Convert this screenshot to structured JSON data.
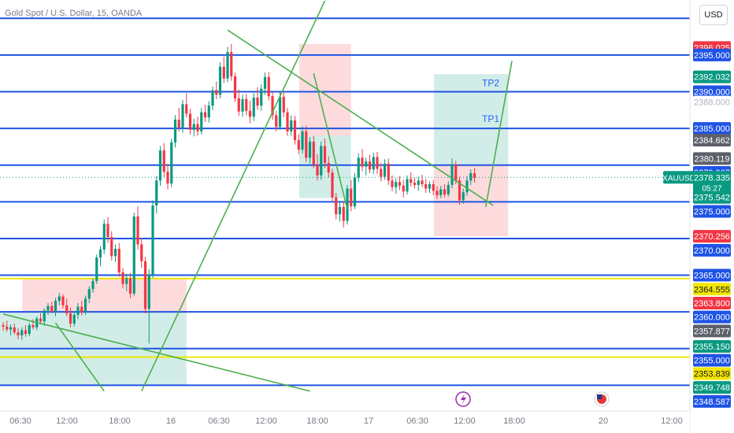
{
  "header": {
    "title": "Gold Spot / U.S. Dollar, 15, OANDA",
    "currency_button": "USD"
  },
  "symbol_tag": {
    "name": "XAUUSD",
    "price": "2378.335",
    "countdown": "05:27"
  },
  "colors": {
    "up": "#089981",
    "down": "#f23645",
    "hline": "#1e53e5",
    "yellow_line": "#f2e600",
    "trend": "#4caf50",
    "zone_green": "rgba(8,153,129,0.18)",
    "zone_red": "rgba(242,54,69,0.18)",
    "tp_text": "#2962ff"
  },
  "chart_data": {
    "type": "candlestick",
    "instrument": "XAUUSD",
    "timeframe": "15",
    "ylim": [
      2346.5,
      2402.5
    ],
    "x_ticks": [
      "06:30",
      "12:00",
      "18:00",
      "16",
      "06:30",
      "12:00",
      "18:00",
      "17",
      "06:30",
      "12:00",
      "18:00",
      "20",
      "12:00"
    ],
    "horizontal_levels": [
      2400,
      2395,
      2390,
      2385,
      2380,
      2375,
      2370,
      2365,
      2360,
      2355,
      2350
    ],
    "yellow_levels": [
      2364.555,
      2353.839
    ],
    "labels": [
      {
        "text": "TP2",
        "price": 2391.2
      },
      {
        "text": "TP1",
        "price": 2386.3
      }
    ],
    "price_tags": [
      {
        "text": "2396.025",
        "price": 2396.025,
        "kind": "red"
      },
      {
        "text": "2395.000",
        "price": 2395.0,
        "kind": "blue"
      },
      {
        "text": "2392.032",
        "price": 2392.032,
        "kind": "green"
      },
      {
        "text": "2390.000",
        "price": 2390.0,
        "kind": "blue"
      },
      {
        "text": "2388.000",
        "price": 2388.6,
        "kind": "plain"
      },
      {
        "text": "2385.000",
        "price": 2385.0,
        "kind": "blue"
      },
      {
        "text": "2384.662",
        "price": 2383.4,
        "kind": "gray"
      },
      {
        "text": "2380.119",
        "price": 2380.9,
        "kind": "gray"
      },
      {
        "text": "2379.907",
        "price": 2379.0,
        "kind": "blue"
      },
      {
        "text": "2375.542",
        "price": 2375.6,
        "kind": "green"
      },
      {
        "text": "2375.000",
        "price": 2373.7,
        "kind": "blue"
      },
      {
        "text": "2370.256",
        "price": 2370.3,
        "kind": "red"
      },
      {
        "text": "2370.000",
        "price": 2368.4,
        "kind": "blue"
      },
      {
        "text": "2365.000",
        "price": 2365.0,
        "kind": "blue"
      },
      {
        "text": "2364.555",
        "price": 2363.1,
        "kind": "yellow"
      },
      {
        "text": "2363.800",
        "price": 2361.2,
        "kind": "red"
      },
      {
        "text": "2360.000",
        "price": 2359.3,
        "kind": "blue"
      },
      {
        "text": "2357.877",
        "price": 2357.4,
        "kind": "gray"
      },
      {
        "text": "2355.150",
        "price": 2355.3,
        "kind": "green"
      },
      {
        "text": "2355.000",
        "price": 2353.4,
        "kind": "blue"
      },
      {
        "text": "2353.839",
        "price": 2351.6,
        "kind": "yellow"
      },
      {
        "text": "2349.748",
        "price": 2349.7,
        "kind": "green"
      },
      {
        "text": "2348.587",
        "price": 2347.8,
        "kind": "blue"
      }
    ],
    "zones": [
      {
        "kind": "green",
        "bar_from": 0,
        "bar_to": 49,
        "price_top": 2359.9,
        "price_bottom": 2350.0
      },
      {
        "kind": "red",
        "bar_from": 6,
        "bar_to": 49,
        "price_top": 2364.6,
        "price_bottom": 2359.9
      },
      {
        "kind": "red",
        "bar_from": 80,
        "bar_to": 93,
        "price_top": 2396.5,
        "price_bottom": 2384.0
      },
      {
        "kind": "green",
        "bar_from": 80,
        "bar_to": 93,
        "price_top": 2384.0,
        "price_bottom": 2375.5
      },
      {
        "kind": "green",
        "bar_from": 116,
        "bar_to": 135,
        "price_top": 2392.4,
        "price_bottom": 2380.1
      },
      {
        "kind": "red",
        "bar_from": 116,
        "bar_to": 135,
        "price_top": 2380.1,
        "price_bottom": 2370.3
      }
    ],
    "trendlines": [
      {
        "from": [
          0,
          2359.7
        ],
        "to": [
          82,
          2349.2
        ]
      },
      {
        "from": [
          14,
          2358.5
        ],
        "to": [
          27,
          2349.2
        ]
      },
      {
        "from": [
          37,
          2349.2
        ],
        "to": [
          86,
          2402.4
        ]
      },
      {
        "from": [
          60,
          2398.4
        ],
        "to": [
          131,
          2374.5
        ]
      },
      {
        "from": [
          83,
          2392.5
        ],
        "to": [
          92,
          2374.0
        ]
      },
      {
        "from": [
          129,
          2374.3
        ],
        "to": [
          136,
          2394.2
        ]
      }
    ],
    "candles": [
      [
        2358.2,
        2358.6,
        2357.4,
        2358.0
      ],
      [
        2358.0,
        2358.8,
        2357.3,
        2357.6
      ],
      [
        2357.6,
        2358.3,
        2356.8,
        2357.9
      ],
      [
        2357.9,
        2358.4,
        2356.9,
        2357.2
      ],
      [
        2357.2,
        2357.8,
        2356.3,
        2356.8
      ],
      [
        2356.8,
        2357.9,
        2356.2,
        2357.5
      ],
      [
        2357.5,
        2358.2,
        2356.6,
        2357.0
      ],
      [
        2357.0,
        2358.5,
        2356.7,
        2358.2
      ],
      [
        2358.2,
        2359.0,
        2357.6,
        2357.9
      ],
      [
        2357.9,
        2359.4,
        2357.5,
        2359.1
      ],
      [
        2359.1,
        2359.8,
        2358.3,
        2358.7
      ],
      [
        2358.7,
        2360.5,
        2358.1,
        2360.2
      ],
      [
        2360.2,
        2361.2,
        2359.6,
        2360.8
      ],
      [
        2360.8,
        2361.4,
        2359.8,
        2360.0
      ],
      [
        2360.0,
        2361.9,
        2359.4,
        2361.5
      ],
      [
        2361.5,
        2362.6,
        2360.9,
        2362.1
      ],
      [
        2362.1,
        2362.4,
        2360.5,
        2360.9
      ],
      [
        2360.9,
        2361.8,
        2359.4,
        2359.8
      ],
      [
        2359.8,
        2360.6,
        2357.9,
        2358.4
      ],
      [
        2358.4,
        2360.1,
        2358.0,
        2359.6
      ],
      [
        2359.6,
        2361.2,
        2359.0,
        2360.7
      ],
      [
        2360.7,
        2361.5,
        2359.5,
        2359.9
      ],
      [
        2359.9,
        2362.2,
        2359.6,
        2361.8
      ],
      [
        2361.8,
        2363.5,
        2361.2,
        2363.1
      ],
      [
        2363.1,
        2364.6,
        2362.6,
        2364.2
      ],
      [
        2364.2,
        2367.8,
        2363.8,
        2367.4
      ],
      [
        2367.4,
        2369.0,
        2366.2,
        2368.5
      ],
      [
        2368.5,
        2372.6,
        2367.9,
        2372.0
      ],
      [
        2372.0,
        2372.9,
        2369.4,
        2370.2
      ],
      [
        2370.2,
        2371.0,
        2367.0,
        2367.6
      ],
      [
        2367.6,
        2369.2,
        2366.8,
        2368.6
      ],
      [
        2368.6,
        2369.4,
        2364.8,
        2365.4
      ],
      [
        2365.4,
        2366.0,
        2363.2,
        2363.8
      ],
      [
        2363.8,
        2365.2,
        2362.8,
        2364.6
      ],
      [
        2364.6,
        2365.3,
        2361.9,
        2362.5
      ],
      [
        2362.5,
        2373.5,
        2362.2,
        2373.0
      ],
      [
        2373.0,
        2374.4,
        2368.5,
        2369.2
      ],
      [
        2369.2,
        2370.1,
        2366.0,
        2366.9
      ],
      [
        2366.9,
        2367.5,
        2359.8,
        2360.4
      ],
      [
        2360.4,
        2365.8,
        2355.7,
        2365.1
      ],
      [
        2365.1,
        2375.2,
        2364.6,
        2374.5
      ],
      [
        2374.5,
        2378.5,
        2373.4,
        2377.9
      ],
      [
        2377.9,
        2382.6,
        2377.2,
        2382.0
      ],
      [
        2382.0,
        2383.0,
        2378.4,
        2379.1
      ],
      [
        2379.1,
        2380.2,
        2376.7,
        2377.5
      ],
      [
        2377.5,
        2383.6,
        2377.0,
        2383.1
      ],
      [
        2383.1,
        2386.8,
        2382.4,
        2386.2
      ],
      [
        2386.2,
        2387.8,
        2384.6,
        2385.1
      ],
      [
        2385.1,
        2388.9,
        2384.4,
        2388.3
      ],
      [
        2388.3,
        2389.8,
        2386.5,
        2387.0
      ],
      [
        2387.0,
        2387.7,
        2384.2,
        2384.8
      ],
      [
        2384.8,
        2386.3,
        2383.9,
        2385.6
      ],
      [
        2385.6,
        2386.6,
        2384.0,
        2384.6
      ],
      [
        2384.6,
        2387.8,
        2384.2,
        2387.2
      ],
      [
        2387.2,
        2388.2,
        2385.9,
        2386.5
      ],
      [
        2386.5,
        2388.7,
        2385.8,
        2388.1
      ],
      [
        2388.1,
        2390.7,
        2387.5,
        2390.2
      ],
      [
        2390.2,
        2391.4,
        2389.0,
        2389.6
      ],
      [
        2389.6,
        2394.0,
        2389.1,
        2393.4
      ],
      [
        2393.4,
        2394.8,
        2391.2,
        2391.8
      ],
      [
        2391.8,
        2396.1,
        2391.3,
        2395.4
      ],
      [
        2395.4,
        2396.5,
        2391.5,
        2392.1
      ],
      [
        2392.1,
        2392.6,
        2388.6,
        2389.1
      ],
      [
        2389.1,
        2390.3,
        2386.7,
        2387.3
      ],
      [
        2387.3,
        2389.6,
        2386.6,
        2389.0
      ],
      [
        2389.0,
        2389.7,
        2386.8,
        2387.4
      ],
      [
        2387.4,
        2388.8,
        2385.7,
        2386.6
      ],
      [
        2386.6,
        2389.8,
        2386.0,
        2389.2
      ],
      [
        2389.2,
        2390.6,
        2387.5,
        2388.1
      ],
      [
        2388.1,
        2391.0,
        2387.4,
        2390.4
      ],
      [
        2390.4,
        2392.6,
        2389.6,
        2392.0
      ],
      [
        2392.0,
        2392.7,
        2388.8,
        2389.4
      ],
      [
        2389.4,
        2390.0,
        2386.2,
        2386.8
      ],
      [
        2386.8,
        2387.4,
        2384.6,
        2385.2
      ],
      [
        2385.2,
        2389.9,
        2384.8,
        2389.3
      ],
      [
        2389.3,
        2390.0,
        2386.5,
        2387.2
      ],
      [
        2387.2,
        2387.8,
        2384.0,
        2384.6
      ],
      [
        2384.6,
        2386.8,
        2384.0,
        2386.1
      ],
      [
        2386.1,
        2386.7,
        2382.8,
        2383.4
      ],
      [
        2383.4,
        2384.2,
        2381.5,
        2382.1
      ],
      [
        2382.1,
        2385.3,
        2381.6,
        2384.6
      ],
      [
        2384.6,
        2385.4,
        2380.4,
        2381.0
      ],
      [
        2381.0,
        2383.8,
        2380.2,
        2383.2
      ],
      [
        2383.2,
        2384.0,
        2379.6,
        2380.1
      ],
      [
        2380.1,
        2381.5,
        2377.9,
        2378.6
      ],
      [
        2378.6,
        2383.2,
        2378.0,
        2382.6
      ],
      [
        2382.6,
        2383.6,
        2379.6,
        2380.3
      ],
      [
        2380.3,
        2381.2,
        2378.3,
        2379.0
      ],
      [
        2379.0,
        2379.5,
        2375.0,
        2375.6
      ],
      [
        2375.6,
        2376.2,
        2372.6,
        2373.3
      ],
      [
        2373.3,
        2375.0,
        2372.3,
        2374.3
      ],
      [
        2374.3,
        2375.0,
        2371.5,
        2372.4
      ],
      [
        2372.4,
        2377.3,
        2371.9,
        2376.8
      ],
      [
        2376.8,
        2378.0,
        2373.7,
        2374.4
      ],
      [
        2374.4,
        2378.9,
        2374.0,
        2378.3
      ],
      [
        2378.3,
        2381.6,
        2377.7,
        2381.0
      ],
      [
        2381.0,
        2382.2,
        2379.2,
        2379.8
      ],
      [
        2379.8,
        2381.0,
        2378.6,
        2380.5
      ],
      [
        2380.5,
        2381.4,
        2378.9,
        2379.4
      ],
      [
        2379.4,
        2381.7,
        2378.8,
        2381.1
      ],
      [
        2381.1,
        2381.8,
        2378.8,
        2379.5
      ],
      [
        2379.5,
        2380.3,
        2377.8,
        2378.4
      ],
      [
        2378.4,
        2380.8,
        2378.0,
        2380.2
      ],
      [
        2380.2,
        2380.9,
        2377.3,
        2377.9
      ],
      [
        2377.9,
        2378.6,
        2376.4,
        2377.0
      ],
      [
        2377.0,
        2378.2,
        2376.1,
        2377.7
      ],
      [
        2377.7,
        2378.5,
        2376.6,
        2377.2
      ],
      [
        2377.2,
        2378.0,
        2375.6,
        2376.4
      ],
      [
        2376.4,
        2378.6,
        2376.0,
        2378.1
      ],
      [
        2378.1,
        2379.0,
        2377.1,
        2377.6
      ],
      [
        2377.6,
        2378.3,
        2376.8,
        2377.3
      ],
      [
        2377.3,
        2378.4,
        2376.5,
        2377.9
      ],
      [
        2377.9,
        2378.7,
        2377.0,
        2377.4
      ],
      [
        2377.4,
        2378.1,
        2376.2,
        2376.8
      ],
      [
        2376.8,
        2377.8,
        2376.2,
        2377.4
      ],
      [
        2377.4,
        2378.0,
        2375.9,
        2376.5
      ],
      [
        2376.5,
        2377.1,
        2375.4,
        2375.9
      ],
      [
        2375.9,
        2377.2,
        2375.5,
        2376.7
      ],
      [
        2376.7,
        2377.4,
        2375.6,
        2376.0
      ],
      [
        2376.0,
        2377.8,
        2375.7,
        2377.3
      ],
      [
        2377.3,
        2380.9,
        2376.8,
        2380.1
      ],
      [
        2380.1,
        2380.6,
        2377.4,
        2377.9
      ],
      [
        2377.9,
        2378.4,
        2374.6,
        2375.2
      ],
      [
        2375.2,
        2376.8,
        2374.7,
        2376.3
      ],
      [
        2376.3,
        2378.5,
        2375.8,
        2377.9
      ],
      [
        2377.9,
        2379.4,
        2377.3,
        2378.9
      ],
      [
        2378.9,
        2379.6,
        2377.6,
        2378.3
      ]
    ]
  }
}
